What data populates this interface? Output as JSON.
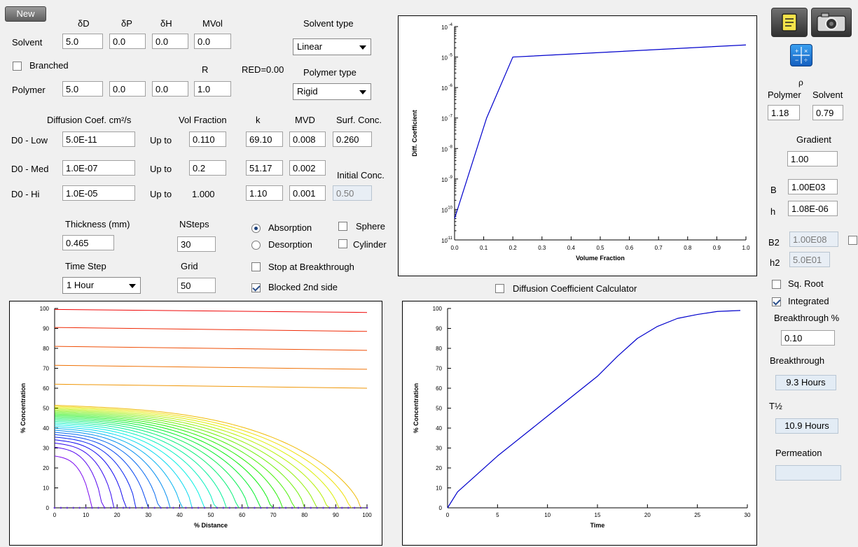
{
  "toolbar": {
    "new_label": "New"
  },
  "params": {
    "headers": {
      "dD": "δD",
      "dP": "δP",
      "dH": "δH",
      "mvol": "MVol",
      "r": "R"
    },
    "solvent_label": "Solvent",
    "solvent": {
      "dD": "5.0",
      "dP": "0.0",
      "dH": "0.0",
      "mvol": "0.0"
    },
    "branched_label": "Branched",
    "branched_checked": false,
    "red_text": "RED=0.00",
    "polymer_label": "Polymer",
    "polymer": {
      "dD": "5.0",
      "dP": "0.0",
      "dH": "0.0",
      "r": "1.0"
    }
  },
  "solvent_type": {
    "label": "Solvent type",
    "value": "Linear"
  },
  "polymer_type": {
    "label": "Polymer type",
    "value": "Rigid"
  },
  "diffusion": {
    "headers": {
      "coef": "Diffusion Coef. cm²/s",
      "vol_fraction": "Vol Fraction",
      "k": "k",
      "mvd": "MVD",
      "surf_conc": "Surf. Conc.",
      "initial_conc": "Initial Conc."
    },
    "up_to": "Up to",
    "rows": [
      {
        "label": "D0 - Low",
        "coef": "5.0E-11",
        "vol": "0.110",
        "k": "69.10",
        "mvd": "0.008"
      },
      {
        "label": "D0 - Med",
        "coef": "1.0E-07",
        "vol": "0.2",
        "k": "51.17",
        "mvd": "0.002"
      },
      {
        "label": "D0 - Hi",
        "coef": "1.0E-05",
        "vol": "1.000",
        "k": "1.10",
        "mvd": "0.001"
      }
    ],
    "surf_conc": "0.260",
    "initial_conc": "0.50"
  },
  "sim": {
    "thickness_label": "Thickness (mm)",
    "thickness": "0.465",
    "nsteps_label": "NSteps",
    "nsteps": "30",
    "timestep_label": "Time Step",
    "timestep": "1 Hour",
    "grid_label": "Grid",
    "grid": "50",
    "absorption_label": "Absorption",
    "desorption_label": "Desorption",
    "mode": "absorption",
    "sphere_label": "Sphere",
    "cylinder_label": "Cylinder",
    "stop_label": "Stop at Breakthrough",
    "blocked_label": "Blocked 2nd side",
    "blocked_checked": true,
    "calc_label": "Diffusion Coefficient Calculator"
  },
  "right": {
    "rho": "ρ",
    "polymer_label": "Polymer",
    "solvent_label": "Solvent",
    "rho_polymer": "1.18",
    "rho_solvent": "0.79",
    "gradient_label": "Gradient",
    "gradient": "1.00",
    "b_label": "B",
    "b": "1.00E03",
    "h_label": "h",
    "h": "1.08E-06",
    "b2_label": "B2",
    "b2": "1.00E08",
    "h2_label": "h2",
    "h2": "5.0E01",
    "sqroot_label": "Sq. Root",
    "integrated_label": "Integrated",
    "integrated_checked": true,
    "bt_pct_label": "Breakthrough %",
    "bt_pct": "0.10",
    "bt_label": "Breakthrough",
    "bt": "9.3 Hours",
    "thalf_label": "T½",
    "thalf": "10.9 Hours",
    "perm_label": "Permeation",
    "perm": ""
  },
  "icons": [
    "notes-icon",
    "camera-icon",
    "calculator-icon"
  ],
  "chart_data": [
    {
      "type": "line",
      "title": "",
      "xlabel": "Volume Fraction",
      "ylabel": "Diff. Coefficient",
      "xlim": [
        0,
        1
      ],
      "ylim": [
        1e-11,
        0.0001
      ],
      "log_y": true,
      "x_ticks": [
        "0.0",
        "0.1",
        "0.2",
        "0.3",
        "0.4",
        "0.5",
        "0.6",
        "0.7",
        "0.8",
        "0.9",
        "1.0"
      ],
      "series": [
        {
          "x": [
            0,
            0.11,
            0.2,
            1.0
          ],
          "y": [
            5e-11,
            1e-07,
            1e-05,
            2.5e-05
          ],
          "color": "#0000cc"
        }
      ]
    },
    {
      "type": "line",
      "title": "",
      "xlabel": "% Distance",
      "ylabel": "% Concentration",
      "xlim": [
        0,
        100
      ],
      "ylim": [
        0,
        100
      ],
      "x_ticks": [
        "0",
        "10",
        "20",
        "30",
        "40",
        "50",
        "60",
        "70",
        "80",
        "90",
        "100"
      ],
      "y_ticks": [
        "0",
        "10",
        "20",
        "30",
        "40",
        "50",
        "60",
        "70",
        "80",
        "90",
        "100"
      ],
      "profiles": "concentration profiles at 30 time steps, colored violet to red",
      "series": [
        {
          "step": 1,
          "x": [
            0,
            3,
            6,
            8,
            10
          ],
          "y": [
            28,
            16,
            6,
            1,
            0
          ],
          "color": "#5a00c8"
        },
        {
          "step": 5,
          "x": [
            0,
            8,
            14,
            18,
            20
          ],
          "y": [
            37,
            30,
            18,
            6,
            0
          ],
          "color": "#2a40e0"
        },
        {
          "step": 10,
          "x": [
            0,
            15,
            25,
            30,
            32
          ],
          "y": [
            42,
            38,
            28,
            10,
            0
          ],
          "color": "#0090e0"
        },
        {
          "step": 15,
          "x": [
            0,
            25,
            40,
            47,
            50
          ],
          "y": [
            46,
            43,
            36,
            15,
            0
          ],
          "color": "#00c0c0"
        },
        {
          "step": 20,
          "x": [
            0,
            40,
            60,
            70,
            74
          ],
          "y": [
            50,
            46,
            40,
            20,
            0
          ],
          "color": "#30d060"
        },
        {
          "step": 24,
          "x": [
            0,
            50,
            80,
            92,
            94
          ],
          "y": [
            51,
            48,
            43,
            25,
            0
          ],
          "color": "#70e020"
        },
        {
          "step": 25,
          "x": [
            0,
            50,
            90,
            98,
            100
          ],
          "y": [
            52,
            49,
            45,
            32,
            15
          ],
          "color": "#90e000"
        },
        {
          "step": 30,
          "x": [
            0,
            100
          ],
          "y": [
            99,
            99
          ],
          "color": "#e00000"
        }
      ]
    },
    {
      "type": "line",
      "title": "",
      "xlabel": "Time",
      "ylabel": "% Concentration",
      "xlim": [
        0,
        30
      ],
      "ylim": [
        0,
        100
      ],
      "x_ticks": [
        "0",
        "5",
        "10",
        "15",
        "20",
        "25",
        "30"
      ],
      "y_ticks": [
        "0",
        "10",
        "20",
        "30",
        "40",
        "50",
        "60",
        "70",
        "80",
        "90",
        "100"
      ],
      "series": [
        {
          "x": [
            0,
            1,
            5,
            10,
            15,
            17,
            19,
            21,
            23,
            25,
            27,
            29.3
          ],
          "y": [
            0,
            8,
            26,
            46,
            66,
            76,
            85,
            91,
            95,
            97,
            98.5,
            99
          ],
          "color": "#0000cc"
        }
      ]
    }
  ]
}
